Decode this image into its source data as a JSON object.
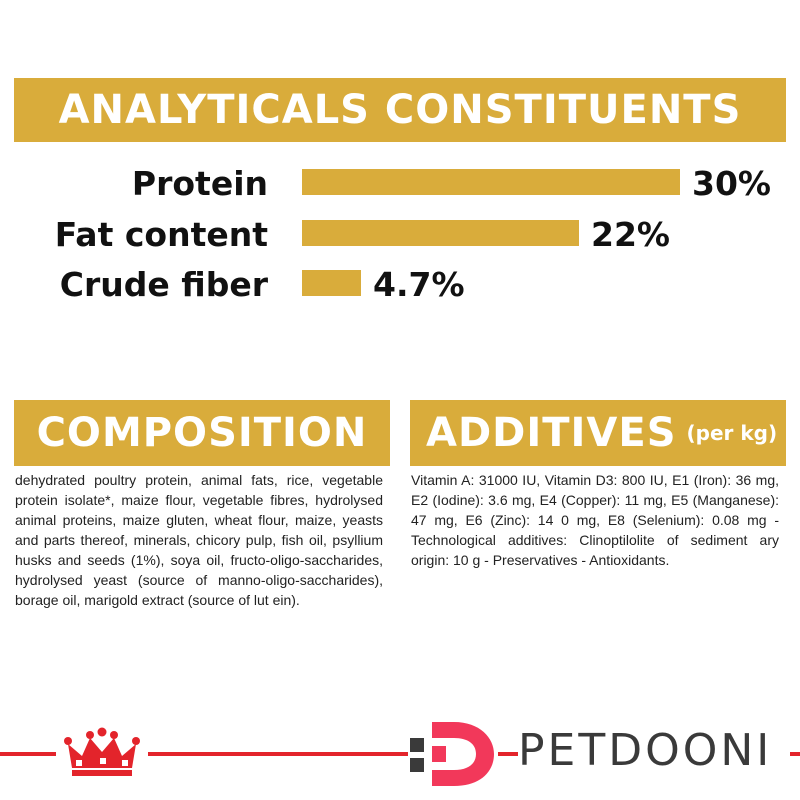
{
  "analytics": {
    "title": "ANALYTICALS CONSTITUENTS",
    "items": [
      {
        "label": "Protein",
        "value_text": "30%",
        "value": 30
      },
      {
        "label": "Fat content",
        "value_text": "22%",
        "value": 22
      },
      {
        "label": "Crude fiber",
        "value_text": "4.7%",
        "value": 4.7
      }
    ],
    "bar_color": "#d9ac3b"
  },
  "composition": {
    "title": "COMPOSITION",
    "text": "dehydrated poultry protein, animal fats, rice, vegetable protein isolate*, maize flour, vegetable fibres, hydrolysed animal proteins, maize gluten, wheat flour, maize, yeasts and parts thereof, minerals, chicory pulp, fish oil, psyllium husks and seeds (1%), soya oil, fructo-oligo-saccharides, hydrolysed yeast (source of manno-oligo-saccharides), borage oil, marigold extract (source of lut ein)."
  },
  "additives": {
    "title": "ADDITIVES",
    "unit": "(per kg)",
    "text": "Vitamin A: 31000 IU, Vitamin D3: 800 IU, E1 (Iron): 36 mg, E2 (Iodine): 3.6 mg, E4 (Copper): 11 mg, E5 (Manganese): 47 mg, E6 (Zinc): 14 0 mg, E8 (Selenium): 0.08 mg -Technological additives: Clinoptilolite of sediment ary origin: 10 g - Preservatives - Antioxidants."
  },
  "footer": {
    "brand_name": "PETDOONI",
    "accent_color": "#e3242b",
    "logo_icon": "crown-icon"
  }
}
